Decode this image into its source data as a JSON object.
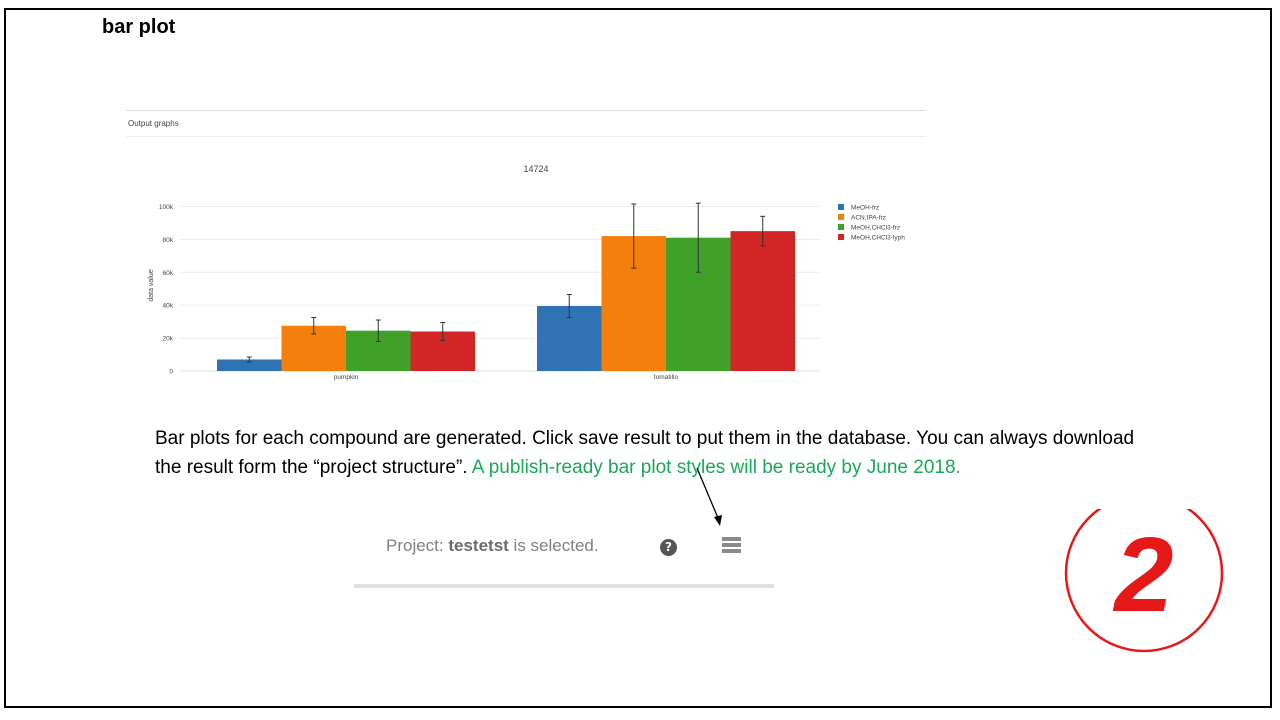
{
  "slide": {
    "title": "bar plot",
    "caption_part1": "Bar plots for each compound are generated. Click save result to put them in the database. You can always download the result form the “project structure”.",
    "caption_part2": " A publish-ready bar plot styles will be ready by June 2018.",
    "badge_number": "2"
  },
  "panel": {
    "header": "Output graphs"
  },
  "status": {
    "prefix": "Project: ",
    "project": "testetst",
    "suffix": " is selected."
  },
  "icons": {
    "help": "question-circle-icon",
    "structure": "project-structure-icon"
  },
  "colors": {
    "caption_highlight": "#1aa85a",
    "badge": "#e61919"
  },
  "chart_data": {
    "type": "bar",
    "title": "14724",
    "xlabel": "",
    "ylabel": "data value",
    "categories": [
      "pumpkin",
      "tomatillo"
    ],
    "ylim": [
      0,
      110000
    ],
    "yticks": [
      0,
      20000,
      40000,
      60000,
      80000,
      100000
    ],
    "ytick_labels": [
      "0",
      "20k",
      "40k",
      "60k",
      "80k",
      "100k"
    ],
    "grid": true,
    "legend_position": "top-right",
    "series": [
      {
        "name": "MeOH-frz",
        "color": "#2f73b5",
        "values": [
          7000,
          39500
        ],
        "errors": [
          1500,
          7000
        ]
      },
      {
        "name": "ACN,IPA-frz",
        "color": "#f57f0c",
        "values": [
          27500,
          82000
        ],
        "errors": [
          5000,
          19500
        ]
      },
      {
        "name": "MeOH,CHCl3-frz",
        "color": "#3fa12a",
        "values": [
          24500,
          81000
        ],
        "errors": [
          6500,
          21000
        ]
      },
      {
        "name": "MeOH,CHCl3-lyph",
        "color": "#d22525",
        "values": [
          24000,
          85000
        ],
        "errors": [
          5500,
          9000
        ]
      }
    ]
  }
}
